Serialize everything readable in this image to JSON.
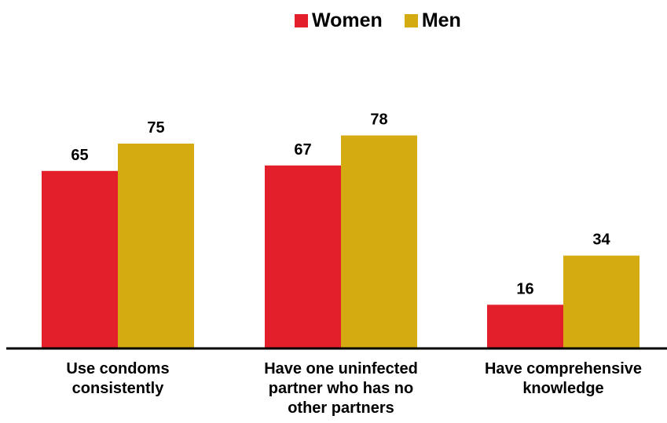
{
  "colors": {
    "women": "#E21F2A",
    "men": "#D4AB10",
    "axis": "#000000"
  },
  "legend": {
    "women_label": "Women",
    "men_label": "Men"
  },
  "chart_data": {
    "type": "bar",
    "categories": [
      "Use condoms\nconsistently",
      "Have one uninfected\npartner who has no\nother partners",
      "Have comprehensive\nknowledge"
    ],
    "series": [
      {
        "name": "Women",
        "values": [
          65,
          67,
          16
        ]
      },
      {
        "name": "Men",
        "values": [
          75,
          78,
          34
        ]
      }
    ],
    "title": "",
    "xlabel": "",
    "ylabel": "",
    "ylim": [
      0,
      100
    ],
    "grid": false,
    "legend_position": "top-center"
  }
}
